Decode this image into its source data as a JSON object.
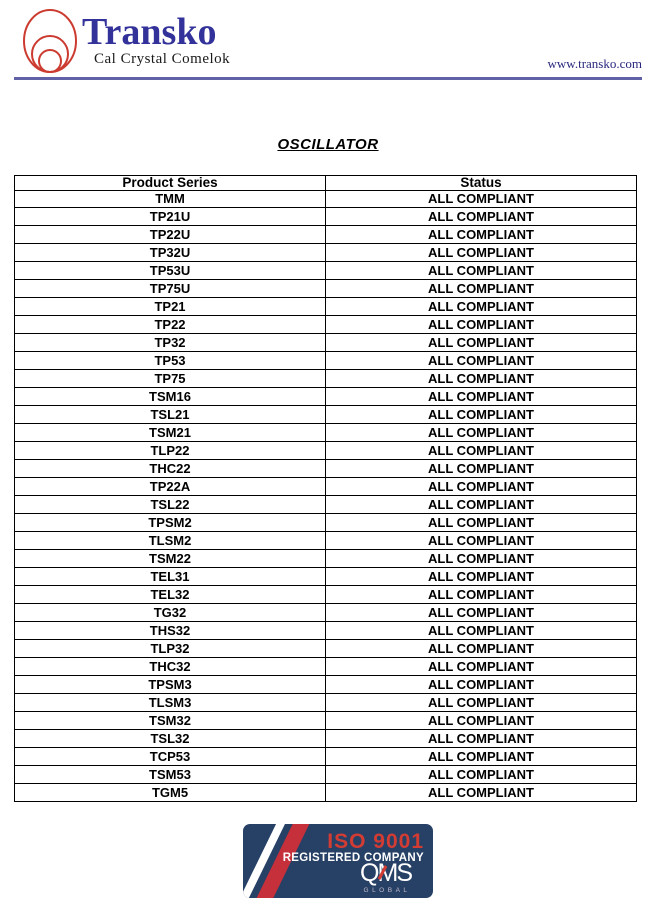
{
  "header": {
    "brand": "Transko",
    "tagline": "Cal Crystal Comelok",
    "website": "www.transko.com"
  },
  "title": "OSCILLATOR",
  "table": {
    "columns": [
      "Product Series",
      "Status"
    ],
    "rows": [
      {
        "series": "TMM",
        "status": "ALL COMPLIANT"
      },
      {
        "series": "TP21U",
        "status": "ALL COMPLIANT"
      },
      {
        "series": "TP22U",
        "status": "ALL COMPLIANT"
      },
      {
        "series": "TP32U",
        "status": "ALL COMPLIANT"
      },
      {
        "series": "TP53U",
        "status": "ALL COMPLIANT"
      },
      {
        "series": "TP75U",
        "status": "ALL COMPLIANT"
      },
      {
        "series": "TP21",
        "status": "ALL COMPLIANT"
      },
      {
        "series": "TP22",
        "status": "ALL COMPLIANT"
      },
      {
        "series": "TP32",
        "status": "ALL COMPLIANT"
      },
      {
        "series": "TP53",
        "status": "ALL COMPLIANT"
      },
      {
        "series": "TP75",
        "status": "ALL COMPLIANT"
      },
      {
        "series": "TSM16",
        "status": "ALL COMPLIANT"
      },
      {
        "series": "TSL21",
        "status": "ALL COMPLIANT"
      },
      {
        "series": "TSM21",
        "status": "ALL COMPLIANT"
      },
      {
        "series": "TLP22",
        "status": "ALL COMPLIANT"
      },
      {
        "series": "THC22",
        "status": "ALL COMPLIANT"
      },
      {
        "series": "TP22A",
        "status": "ALL COMPLIANT"
      },
      {
        "series": "TSL22",
        "status": "ALL COMPLIANT"
      },
      {
        "series": "TPSM2",
        "status": "ALL COMPLIANT"
      },
      {
        "series": "TLSM2",
        "status": "ALL COMPLIANT"
      },
      {
        "series": "TSM22",
        "status": "ALL COMPLIANT"
      },
      {
        "series": "TEL31",
        "status": "ALL COMPLIANT"
      },
      {
        "series": "TEL32",
        "status": "ALL COMPLIANT"
      },
      {
        "series": "TG32",
        "status": "ALL COMPLIANT"
      },
      {
        "series": "THS32",
        "status": "ALL COMPLIANT"
      },
      {
        "series": "TLP32",
        "status": "ALL COMPLIANT"
      },
      {
        "series": "THC32",
        "status": "ALL COMPLIANT"
      },
      {
        "series": "TPSM3",
        "status": "ALL COMPLIANT"
      },
      {
        "series": "TLSM3",
        "status": "ALL COMPLIANT"
      },
      {
        "series": "TSM32",
        "status": "ALL COMPLIANT"
      },
      {
        "series": "TSL32",
        "status": "ALL COMPLIANT"
      },
      {
        "series": "TCP53",
        "status": "ALL COMPLIANT"
      },
      {
        "series": "TSM53",
        "status": "ALL COMPLIANT"
      },
      {
        "series": "TGM5",
        "status": "ALL COMPLIANT"
      }
    ]
  },
  "badge": {
    "iso": "ISO 9001",
    "registered": "REGISTERED COMPANY",
    "qms": "QMS",
    "global": "GLOBAL"
  },
  "colors": {
    "brand_blue": "#32329a",
    "logo_red": "#cc3b30",
    "divider_purple": "#6161a8",
    "website_blue": "#28287e",
    "badge_navy": "#274066",
    "badge_red": "#d23c33"
  }
}
